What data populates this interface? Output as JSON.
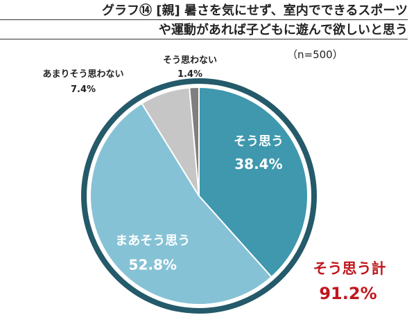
{
  "title_line1": "グラフ⑭ [親]  暑さを気にせず、室内でできるスポーツ",
  "title_line2": "や運動があれば子どもに遊んで欲しいと思う",
  "sample_note": "（n=500）",
  "colors": {
    "slice_1": "#3f98ad",
    "slice_2": "#86c2d5",
    "slice_3": "#c6c6c6",
    "slice_4": "#7f7f7f",
    "outer_ring": "#245a6a",
    "highlight": "#c0161d",
    "inner_text": "#ffffff"
  },
  "chart_data": {
    "type": "pie",
    "title": "",
    "slices": [
      {
        "label": "そう思う",
        "value": 38.4,
        "value_label": "38.4%"
      },
      {
        "label": "まあそう思う",
        "value": 52.8,
        "value_label": "52.8%"
      },
      {
        "label": "あまりそう思わない",
        "value": 7.4,
        "value_label": "7.4%"
      },
      {
        "label": "そう思わない",
        "value": 1.4,
        "value_label": "1.4%"
      }
    ],
    "annotation": {
      "label": "そう思う計",
      "value_label": "91.2%"
    }
  }
}
